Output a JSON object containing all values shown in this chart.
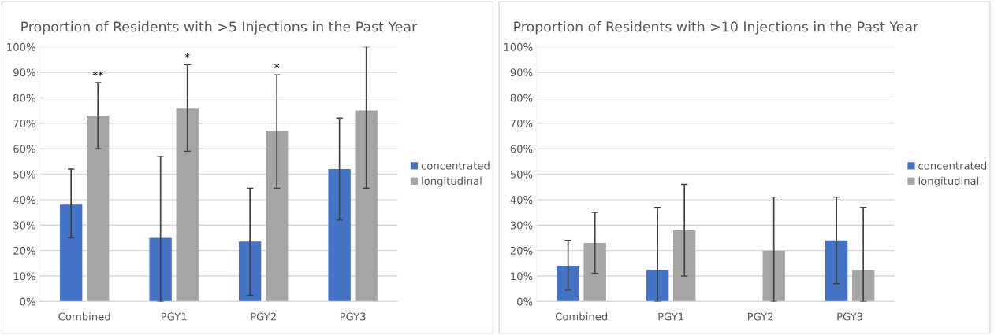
{
  "chart_data": [
    {
      "type": "bar",
      "title": "Proportion of Residents with >5 Injections in the Past Year",
      "categories": [
        "Combined",
        "PGY1",
        "PGY2",
        "PGY3"
      ],
      "series": [
        {
          "name": "concentrated",
          "color": "#4472c4",
          "values": [
            38,
            25,
            23.5,
            52
          ],
          "errors": [
            [
              25,
              52
            ],
            [
              0,
              57
            ],
            [
              2.5,
              44.5
            ],
            [
              32,
              72
            ]
          ]
        },
        {
          "name": "longitudinal",
          "color": "#a5a5a5",
          "values": [
            73,
            76,
            67,
            75
          ],
          "errors": [
            [
              60,
              86
            ],
            [
              59,
              93
            ],
            [
              44.5,
              89
            ],
            [
              44.5,
              100
            ]
          ]
        }
      ],
      "annotations": [
        "**",
        "*",
        "*"
      ],
      "ylim": [
        0,
        100
      ],
      "yticks": [
        {
          "value": 0,
          "label": "0%"
        },
        {
          "value": 10,
          "label": "10%"
        },
        {
          "value": 20,
          "label": "20%"
        },
        {
          "value": 30,
          "label": "30%"
        },
        {
          "value": 40,
          "label": "40%"
        },
        {
          "value": 50,
          "label": "50%"
        },
        {
          "value": 60,
          "label": "60%"
        },
        {
          "value": 70,
          "label": "70%"
        },
        {
          "value": 80,
          "label": "80%"
        },
        {
          "value": 90,
          "label": "90%"
        },
        {
          "value": 100,
          "label": "100%"
        }
      ],
      "grid": "y",
      "legend": "right"
    },
    {
      "type": "bar",
      "title": "Proportion of Residents with >10 Injections in the Past Year",
      "categories": [
        "Combined",
        "PGY1",
        "PGY2",
        "PGY3"
      ],
      "series": [
        {
          "name": "concentrated",
          "color": "#4472c4",
          "values": [
            14,
            12.5,
            0,
            24
          ],
          "errors": [
            [
              4.5,
              24
            ],
            [
              0,
              37
            ],
            null,
            [
              7,
              41
            ]
          ]
        },
        {
          "name": "longitudinal",
          "color": "#a5a5a5",
          "values": [
            23,
            28,
            20,
            12.5
          ],
          "errors": [
            [
              11,
              35
            ],
            [
              10,
              46
            ],
            [
              0,
              41
            ],
            [
              0,
              37
            ]
          ]
        }
      ],
      "ylim": [
        0,
        100
      ],
      "yticks": [
        {
          "value": 0,
          "label": "0%"
        },
        {
          "value": 10,
          "label": "10%"
        },
        {
          "value": 20,
          "label": "20%"
        },
        {
          "value": 30,
          "label": "30%"
        },
        {
          "value": 40,
          "label": "40%"
        },
        {
          "value": 50,
          "label": "50%"
        },
        {
          "value": 60,
          "label": "60%"
        },
        {
          "value": 70,
          "label": "70%"
        },
        {
          "value": 80,
          "label": "80%"
        },
        {
          "value": 90,
          "label": "90%"
        },
        {
          "value": 100,
          "label": "100%"
        }
      ],
      "grid": "y",
      "legend": "right"
    }
  ]
}
